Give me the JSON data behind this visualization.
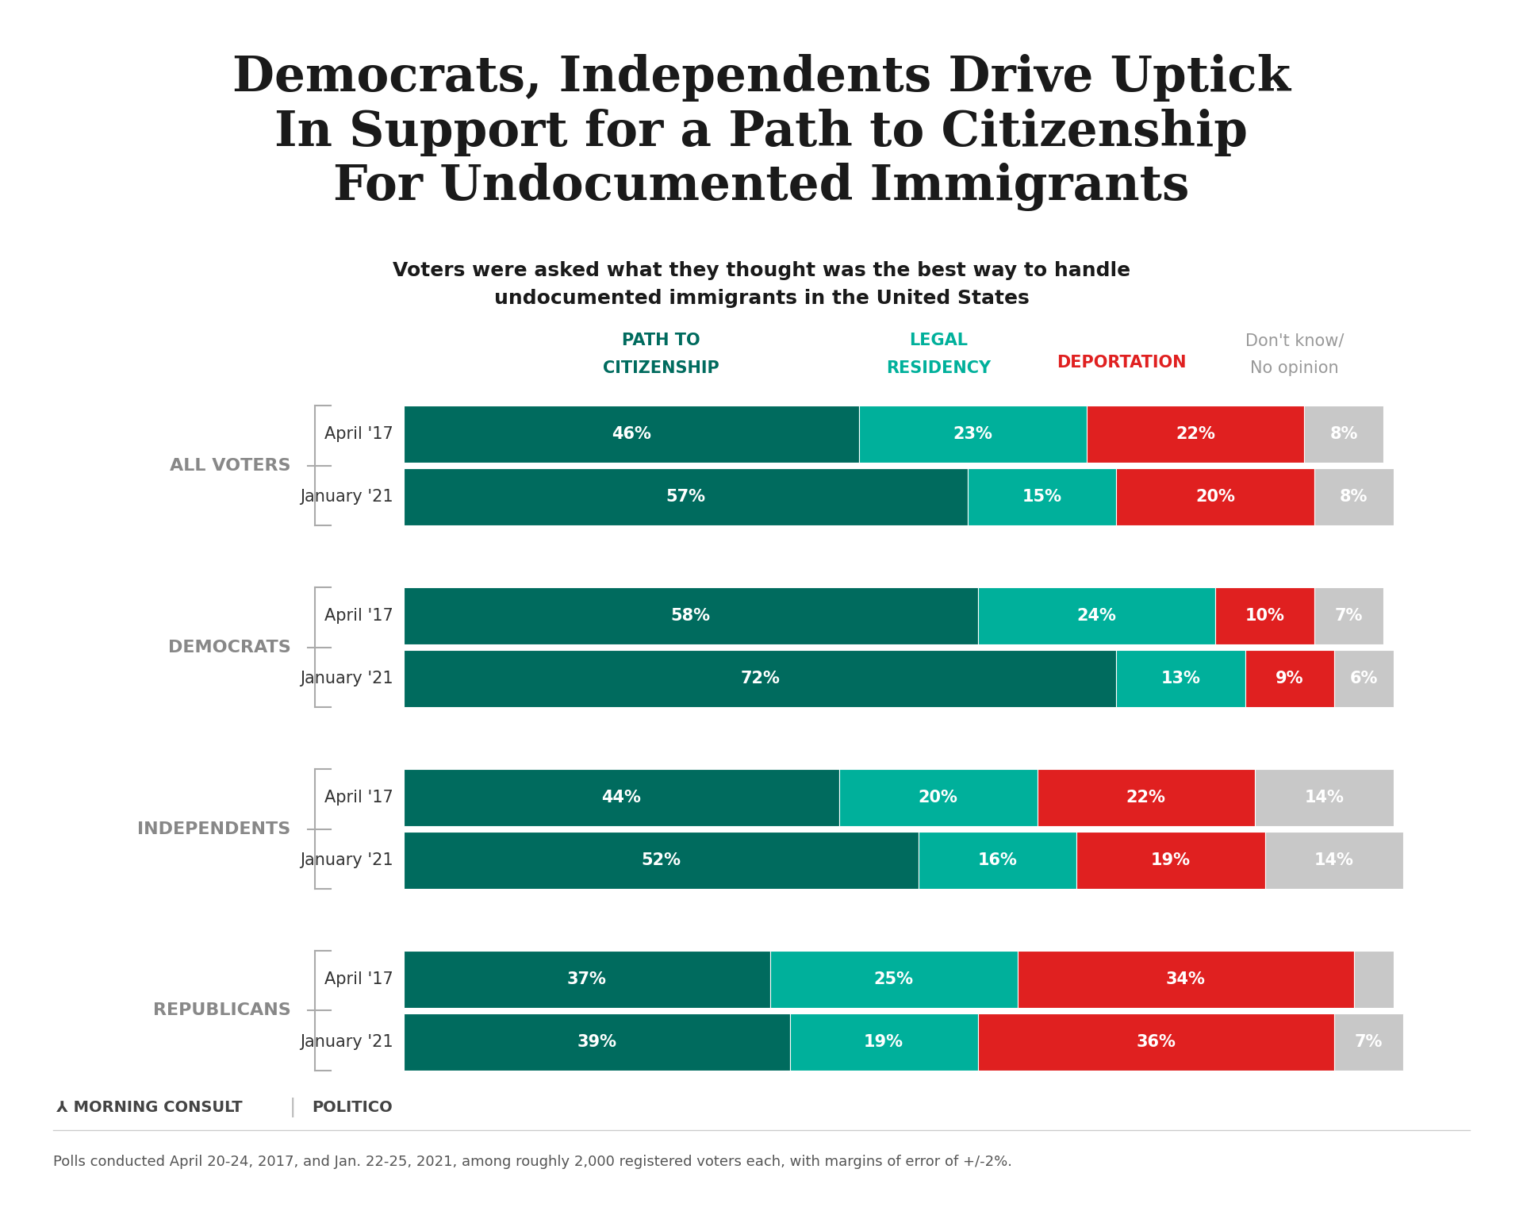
{
  "title_line1": "Democrats, Independents Drive Uptick",
  "title_line2": "In Support for a Path to Citizenship",
  "title_line3": "For Undocumented Immigrants",
  "subtitle": "Voters were asked what they thought was the best way to handle\nundocumented immigrants in the United States",
  "top_bar_color": "#3DCFCF",
  "background_color": "#FFFFFF",
  "col_header_colors": [
    "#006B5E",
    "#00B09B",
    "#E02020",
    "#999999"
  ],
  "groups": [
    {
      "label": "ALL VOTERS",
      "rows": [
        {
          "period": "April '17",
          "values": [
            46,
            23,
            22,
            8
          ]
        },
        {
          "period": "January '21",
          "values": [
            57,
            15,
            20,
            8
          ]
        }
      ]
    },
    {
      "label": "DEMOCRATS",
      "rows": [
        {
          "period": "April '17",
          "values": [
            58,
            24,
            10,
            7
          ]
        },
        {
          "period": "January '21",
          "values": [
            72,
            13,
            9,
            6
          ]
        }
      ]
    },
    {
      "label": "INDEPENDENTS",
      "rows": [
        {
          "period": "April '17",
          "values": [
            44,
            20,
            22,
            14
          ]
        },
        {
          "period": "January '21",
          "values": [
            52,
            16,
            19,
            14
          ]
        }
      ]
    },
    {
      "label": "REPUBLICANS",
      "rows": [
        {
          "period": "April '17",
          "values": [
            37,
            25,
            34,
            4
          ]
        },
        {
          "period": "January '21",
          "values": [
            39,
            19,
            36,
            7
          ]
        }
      ]
    }
  ],
  "bar_colors": [
    "#006B5E",
    "#00B09B",
    "#E02020",
    "#C8C8C8"
  ],
  "bar_text_color": "#FFFFFF",
  "group_label_color": "#888888",
  "period_label_color": "#333333",
  "footer_text": "Polls conducted April 20-24, 2017, and Jan. 22-25, 2021, among roughly 2,000 registered voters each, with margins of error of +/-2%.",
  "logo_text": "MORNING CONSULT",
  "logo_text2": "POLITICO"
}
